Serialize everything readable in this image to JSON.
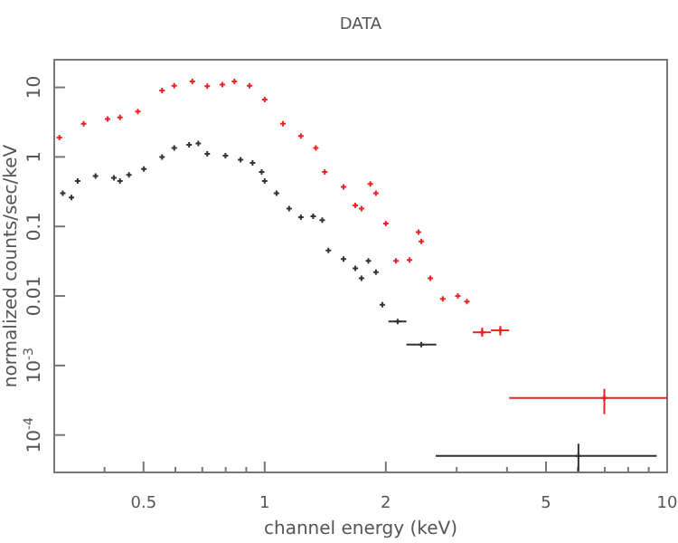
{
  "chart_data": {
    "type": "scatter",
    "title": "DATA",
    "xlabel": "channel energy (keV)",
    "ylabel": "normalized counts/sec/keV",
    "log": "xy",
    "marker": "cross",
    "grid": false,
    "xlim": [
      0.3,
      10
    ],
    "ylim": [
      2.9e-05,
      25
    ],
    "xticks": [
      {
        "value": 0.3,
        "label": null
      },
      {
        "value": 0.4,
        "label": null
      },
      0.5,
      {
        "value": 0.6,
        "label": null
      },
      {
        "value": 0.7,
        "label": null
      },
      {
        "value": 0.8,
        "label": null
      },
      {
        "value": 0.9,
        "label": null
      },
      1,
      2,
      {
        "value": 3,
        "label": null
      },
      {
        "value": 4,
        "label": null
      },
      5,
      {
        "value": 6,
        "label": null
      },
      {
        "value": 7,
        "label": null
      },
      {
        "value": 8,
        "label": null
      },
      {
        "value": 9,
        "label": null
      },
      10
    ],
    "yticks": [
      {
        "value": 0.0001,
        "label": "10$^{-4}$"
      },
      {
        "value": 0.001,
        "label": "10$^{-3}$"
      },
      0.01,
      0.1,
      1,
      10
    ],
    "series": [
      {
        "color": "#ee2222",
        "x": [
          0.309,
          0.355,
          0.407,
          0.437,
          0.484,
          0.556,
          0.596,
          0.661,
          0.72,
          0.785,
          0.841,
          0.917,
          1.0,
          1.11,
          1.23,
          1.34,
          1.41,
          1.57,
          1.68,
          1.74,
          1.83,
          1.89,
          2.0,
          2.12,
          2.29,
          2.41,
          2.45,
          2.58,
          2.77,
          3.02,
          3.18,
          3.47,
          3.85,
          6.98
        ],
        "values": [
          1.9,
          3.0,
          3.5,
          3.7,
          4.5,
          9.0,
          10.6,
          12.2,
          10.4,
          11,
          12.2,
          10.6,
          6.7,
          3.0,
          2.0,
          1.35,
          0.61,
          0.37,
          0.2,
          0.18,
          0.41,
          0.3,
          0.11,
          0.032,
          0.033,
          0.083,
          0.061,
          0.018,
          0.0091,
          0.01,
          0.0083,
          0.003,
          0.0032,
          0.00034
        ],
        "xerrors": [
          null,
          null,
          null,
          null,
          null,
          null,
          null,
          null,
          null,
          null,
          null,
          null,
          null,
          null,
          null,
          null,
          null,
          null,
          null,
          null,
          null,
          null,
          null,
          null,
          null,
          null,
          null,
          null,
          null,
          null,
          null,
          [
            3.29,
            3.65
          ],
          [
            3.65,
            4.05
          ],
          [
            4.05,
            10
          ]
        ],
        "errors": [
          null,
          null,
          null,
          null,
          null,
          null,
          null,
          null,
          null,
          null,
          null,
          null,
          null,
          null,
          null,
          null,
          null,
          null,
          null,
          null,
          null,
          null,
          null,
          null,
          null,
          null,
          null,
          null,
          null,
          null,
          null,
          [
            0.0026,
            0.0035
          ],
          [
            0.0027,
            0.0037
          ],
          [
            0.0002,
            0.00046
          ]
        ]
      },
      {
        "color": "#333333",
        "x": [
          0.315,
          0.331,
          0.343,
          0.38,
          0.422,
          0.437,
          0.46,
          0.501,
          0.556,
          0.596,
          0.649,
          0.684,
          0.72,
          0.799,
          0.871,
          0.933,
          0.983,
          1.0,
          1.07,
          1.15,
          1.23,
          1.32,
          1.39,
          1.44,
          1.57,
          1.68,
          1.74,
          1.81,
          1.89,
          1.96,
          2.14,
          2.45,
          6.02
        ],
        "values": [
          0.3,
          0.26,
          0.45,
          0.53,
          0.5,
          0.45,
          0.55,
          0.67,
          1.0,
          1.35,
          1.49,
          1.56,
          1.11,
          1.04,
          0.91,
          0.82,
          0.61,
          0.45,
          0.3,
          0.18,
          0.136,
          0.14,
          0.123,
          0.045,
          0.034,
          0.025,
          0.018,
          0.032,
          0.022,
          0.0075,
          0.0043,
          0.002,
          5e-05
        ],
        "xerrors": [
          null,
          null,
          null,
          null,
          null,
          null,
          null,
          null,
          null,
          null,
          null,
          null,
          null,
          null,
          null,
          null,
          null,
          null,
          null,
          null,
          null,
          null,
          null,
          null,
          null,
          null,
          null,
          null,
          null,
          null,
          [
            2.03,
            2.25
          ],
          [
            2.25,
            2.67
          ],
          [
            2.66,
            9.42
          ]
        ],
        "errors": [
          null,
          null,
          null,
          null,
          null,
          null,
          null,
          null,
          null,
          null,
          null,
          null,
          null,
          null,
          null,
          null,
          null,
          null,
          null,
          null,
          null,
          null,
          null,
          null,
          null,
          null,
          null,
          null,
          null,
          null,
          null,
          null,
          [
            3e-05,
            7.5e-05
          ]
        ]
      }
    ]
  }
}
